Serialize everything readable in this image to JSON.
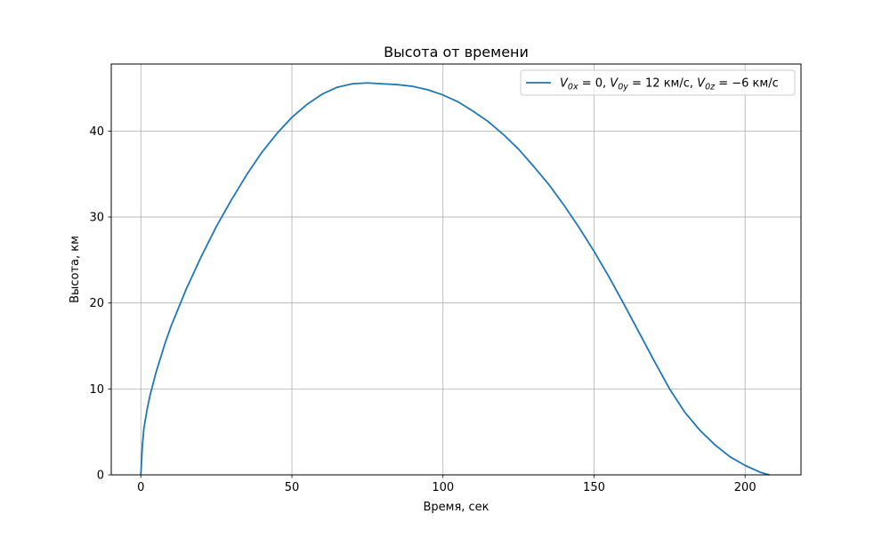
{
  "chart_data": {
    "type": "line",
    "title": "Высота от времени",
    "xlabel": "Время, сек",
    "ylabel": "Высота, км",
    "xlim": [
      -9.8,
      218.5
    ],
    "ylim": [
      0,
      47.8
    ],
    "xticks": [
      0,
      50,
      100,
      150,
      200
    ],
    "yticks": [
      0,
      10,
      20,
      30,
      40
    ],
    "grid": true,
    "legend_position": "top-right",
    "colors": {
      "series": "#1f77b4",
      "grid": "#b0b0b0",
      "axes": "#000000"
    },
    "series": [
      {
        "name": "V0x = 0, V0y = 12 км/с, V0z = −6 км/с",
        "legend_parts": [
          "V",
          "0x",
          " = 0, ",
          "V",
          "0y",
          " = 12 км/с, ",
          "V",
          "0z",
          " = −6 км/с"
        ],
        "x": [
          0,
          0.5,
          1,
          2,
          3,
          5,
          8,
          10,
          15,
          20,
          25,
          30,
          35,
          40,
          45,
          50,
          55,
          60,
          65,
          70,
          75,
          80,
          85,
          90,
          95,
          100,
          105,
          110,
          115,
          120,
          125,
          130,
          135,
          140,
          145,
          150,
          155,
          160,
          165,
          170,
          175,
          180,
          185,
          190,
          195,
          200,
          205,
          208
        ],
        "y": [
          0,
          3.4,
          5.4,
          7.5,
          9.2,
          11.9,
          15.3,
          17.3,
          21.6,
          25.4,
          28.9,
          32.0,
          34.9,
          37.5,
          39.7,
          41.6,
          43.1,
          44.3,
          45.1,
          45.5,
          45.6,
          45.5,
          45.4,
          45.2,
          44.8,
          44.2,
          43.4,
          42.3,
          41.1,
          39.6,
          37.9,
          35.9,
          33.8,
          31.4,
          28.8,
          26.0,
          23.0,
          19.8,
          16.5,
          13.2,
          10.0,
          7.3,
          5.2,
          3.5,
          2.1,
          1.1,
          0.3,
          0
        ]
      }
    ]
  }
}
